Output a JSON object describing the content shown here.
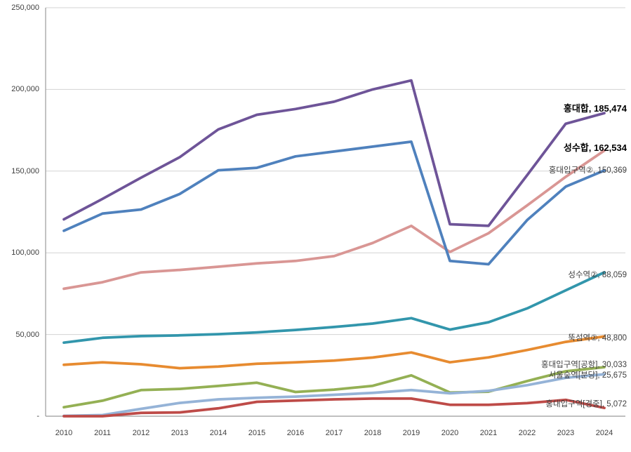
{
  "chart_data": {
    "type": "line",
    "title": "",
    "xlabel": "",
    "ylabel": "",
    "x_labels": [
      "2010",
      "2011",
      "2012",
      "2013",
      "2014",
      "2015",
      "2016",
      "2017",
      "2018",
      "2019",
      "2020",
      "2021",
      "2022",
      "2023",
      "2024"
    ],
    "y_ticks": [
      "250,000",
      "200,000",
      "150,000",
      "100,000",
      "50,000",
      "-"
    ],
    "ylim": [
      0,
      250000
    ],
    "gridline_interval": 50000,
    "grid": "horizontal",
    "legend_position": "none-end-of-line-data-labels",
    "colors": {
      "gridline": "#d3d3d3",
      "axis": "#9b9b9b",
      "tick_text": "#3f3f3f",
      "label_text": "#404040",
      "bold_label_text": "#000000"
    },
    "series": [
      {
        "name": "홍대합",
        "color": "#6e5498",
        "bold_label": true,
        "end_label": "홍대합, 185,474",
        "end_value": 185474,
        "values": [
          120500,
          133000,
          146000,
          158500,
          175500,
          184500,
          188000,
          192500,
          200000,
          205500,
          117500,
          116500,
          147500,
          179000,
          185474
        ]
      },
      {
        "name": "성수합",
        "color": "#d99694",
        "bold_label": true,
        "end_label": "성수합, 162,534",
        "end_value": 162534,
        "values": [
          78000,
          82000,
          88000,
          89500,
          91500,
          93500,
          95000,
          98000,
          106000,
          116500,
          100500,
          112000,
          129000,
          146500,
          162534
        ]
      },
      {
        "name": "홍대입구역②",
        "color": "#4f81bd",
        "bold_label": false,
        "end_label": "홍대입구역②, 150,369",
        "end_value": 150369,
        "values": [
          113500,
          124000,
          126500,
          136000,
          150500,
          152000,
          159000,
          162000,
          165000,
          168000,
          95000,
          93000,
          120000,
          140500,
          150369
        ]
      },
      {
        "name": "성수역②",
        "color": "#3296ac",
        "bold_label": false,
        "end_label": "성수역②, 88,059",
        "end_value": 88059,
        "values": [
          45000,
          48000,
          49000,
          49500,
          50200,
          51300,
          52800,
          54600,
          56700,
          60000,
          53000,
          57500,
          66000,
          77000,
          88059
        ]
      },
      {
        "name": "뚝섬역②",
        "color": "#e78b30",
        "bold_label": false,
        "end_label": "뚝섬역②, 48,800",
        "end_value": 48800,
        "values": [
          31500,
          33000,
          31800,
          29400,
          30400,
          32100,
          33000,
          34000,
          35900,
          39000,
          33000,
          36000,
          40500,
          45500,
          48800
        ]
      },
      {
        "name": "홍대입구역[공항]",
        "color": "#94b054",
        "bold_label": false,
        "end_label": "홍대입구역[공항], 30,033",
        "end_value": 30033,
        "values": [
          5500,
          9500,
          16000,
          16700,
          18500,
          20500,
          14800,
          16300,
          18600,
          25000,
          14500,
          15000,
          21500,
          27500,
          30033
        ]
      },
      {
        "name": "서울숲역[분당]",
        "color": "#95b3d7",
        "bold_label": false,
        "end_label": "서울숲역[분당], 25,675",
        "end_value": 25675,
        "values": [
          200,
          700,
          4500,
          8100,
          10300,
          11300,
          12000,
          13100,
          14300,
          16000,
          14000,
          15500,
          19000,
          23500,
          25675
        ]
      },
      {
        "name": "홍대입구역[경중]",
        "color": "#be4b48",
        "bold_label": false,
        "end_label": "홍대입구역[경중], 5,072",
        "end_value": 5072,
        "values": [
          0,
          0,
          2000,
          2300,
          4800,
          8800,
          9600,
          10300,
          10800,
          10800,
          7000,
          7000,
          8000,
          10000,
          5072
        ]
      }
    ]
  }
}
